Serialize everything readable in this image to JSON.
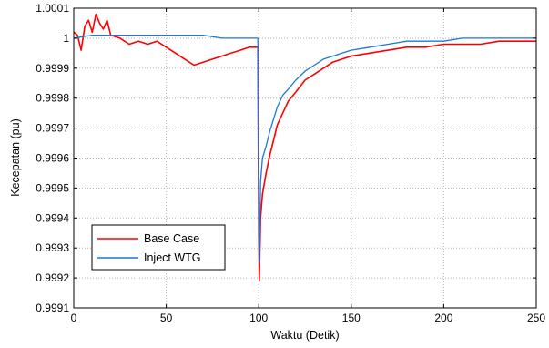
{
  "chart_data": {
    "type": "line",
    "xlabel": "Waktu (Detik)",
    "ylabel": "Kecepatan (pu)",
    "xlim": [
      0,
      250
    ],
    "ylim": [
      0.9991,
      1.0001
    ],
    "xticks": [
      0,
      50,
      100,
      150,
      200,
      250
    ],
    "xtick_labels": [
      "0",
      "50",
      "100",
      "150",
      "200",
      "250"
    ],
    "yticks": [
      0.9991,
      0.9992,
      0.9993,
      0.9994,
      0.9995,
      0.9996,
      0.9997,
      0.9998,
      0.9999,
      1.0,
      1.0001
    ],
    "ytick_labels": [
      "0.9991",
      "0.9992",
      "0.9993",
      "0.9994",
      "0.9995",
      "0.9996",
      "0.9997",
      "0.9998",
      "0.9999",
      "1",
      "1.0001"
    ],
    "grid": true,
    "legend_position": "bottom-left",
    "series": [
      {
        "name": "Base Case",
        "color": "#ff0000",
        "x": [
          0,
          2,
          4,
          6,
          8,
          10,
          12,
          14,
          16,
          18,
          20,
          25,
          30,
          35,
          40,
          45,
          50,
          55,
          60,
          65,
          70,
          75,
          80,
          85,
          90,
          95,
          99.5,
          100,
          100.3,
          101,
          102,
          104,
          106,
          108,
          110,
          113,
          116,
          120,
          125,
          130,
          135,
          140,
          145,
          150,
          160,
          170,
          180,
          190,
          200,
          210,
          220,
          230,
          240,
          250
        ],
        "y": [
          1.00002,
          1.00001,
          0.99996,
          1.00004,
          1.00006,
          1.00002,
          1.00008,
          1.00005,
          1.00003,
          1.00006,
          1.00001,
          1.0,
          0.99998,
          0.99999,
          0.99998,
          0.99999,
          0.99997,
          0.99995,
          0.99993,
          0.99991,
          0.99992,
          0.99993,
          0.99994,
          0.99995,
          0.99996,
          0.99997,
          0.99997,
          0.99935,
          0.99919,
          0.9994,
          0.99948,
          0.99955,
          0.99961,
          0.99966,
          0.99971,
          0.99975,
          0.99979,
          0.99982,
          0.99986,
          0.99988,
          0.9999,
          0.99992,
          0.99993,
          0.99994,
          0.99995,
          0.99996,
          0.99997,
          0.99997,
          0.99998,
          0.99998,
          0.99998,
          0.99999,
          0.99999,
          0.99999
        ]
      },
      {
        "name": "Inject WTG",
        "color": "#1f77d4",
        "x": [
          0,
          10,
          20,
          30,
          40,
          50,
          60,
          70,
          80,
          90,
          99.5,
          100,
          100.3,
          101,
          102,
          104,
          106,
          108,
          110,
          113,
          116,
          120,
          125,
          130,
          135,
          140,
          145,
          150,
          160,
          170,
          180,
          190,
          200,
          210,
          220,
          230,
          240,
          250
        ],
        "y": [
          1.0,
          1.00001,
          1.00001,
          1.00001,
          1.00001,
          1.00001,
          1.00001,
          1.00001,
          1.0,
          1.0,
          1.0,
          0.99945,
          0.99925,
          0.99952,
          0.9996,
          0.99964,
          0.99969,
          0.99973,
          0.99977,
          0.99981,
          0.99983,
          0.99986,
          0.99989,
          0.99991,
          0.99993,
          0.99994,
          0.99995,
          0.99996,
          0.99997,
          0.99998,
          0.99999,
          0.99999,
          0.99999,
          1.0,
          1.0,
          1.0,
          1.0,
          1.0
        ]
      }
    ]
  }
}
